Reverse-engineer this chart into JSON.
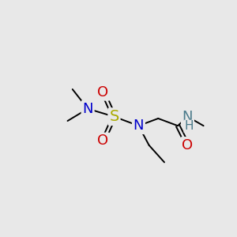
{
  "bg_color": "#e8e8e8",
  "atom_colors": {
    "S": "#aaaa00",
    "N": "#0000cc",
    "O": "#cc0000",
    "NH": "#4a7a8a",
    "C": "#000000"
  },
  "figsize": [
    3.0,
    3.0
  ],
  "dpi": 100,
  "bond_lw": 1.4,
  "font_size": 12
}
